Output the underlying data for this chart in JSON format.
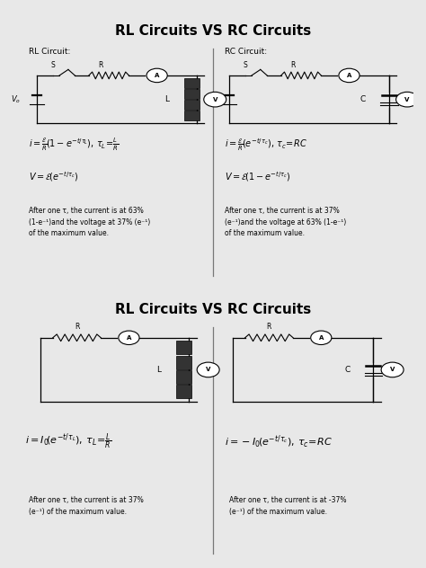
{
  "bg_color": "#e8e8e8",
  "white": "#ffffff",
  "box_edge": "#555555",
  "title": "RL Circuits VS RC Circuits",
  "panel1": {
    "left_label": "RL Circuit:",
    "right_label": "RC Circuit:",
    "left_note": "After one τ, the current is at 63%\n(1-e⁻¹)and the voltage at 37% (e⁻¹)\nof the maximum value.",
    "right_note": "After one τ, the current is at 37%\n(e⁻¹)and the voltage at 63% (1-e⁻¹)\nof the maximum value."
  },
  "panel2": {
    "left_note": "After one τ, the current is at 37%\n(e⁻¹) of the maximum value.",
    "right_note": "After one τ, the current is at -37%\n(e⁻¹) of the maximum value."
  }
}
